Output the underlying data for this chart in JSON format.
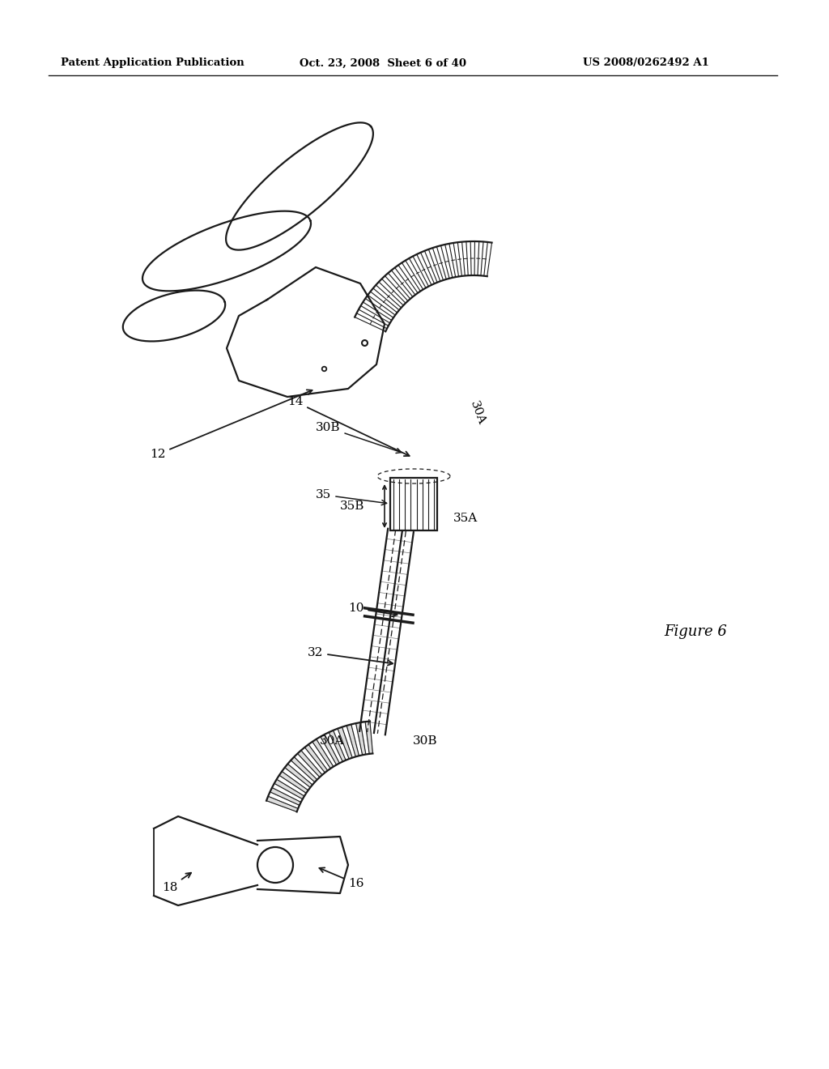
{
  "title_left": "Patent Application Publication",
  "title_center": "Oct. 23, 2008  Sheet 6 of 40",
  "title_right": "US 2008/0262492 A1",
  "figure_label": "Figure 6",
  "page_bg": "#ffffff",
  "line_color": "#1a1a1a"
}
